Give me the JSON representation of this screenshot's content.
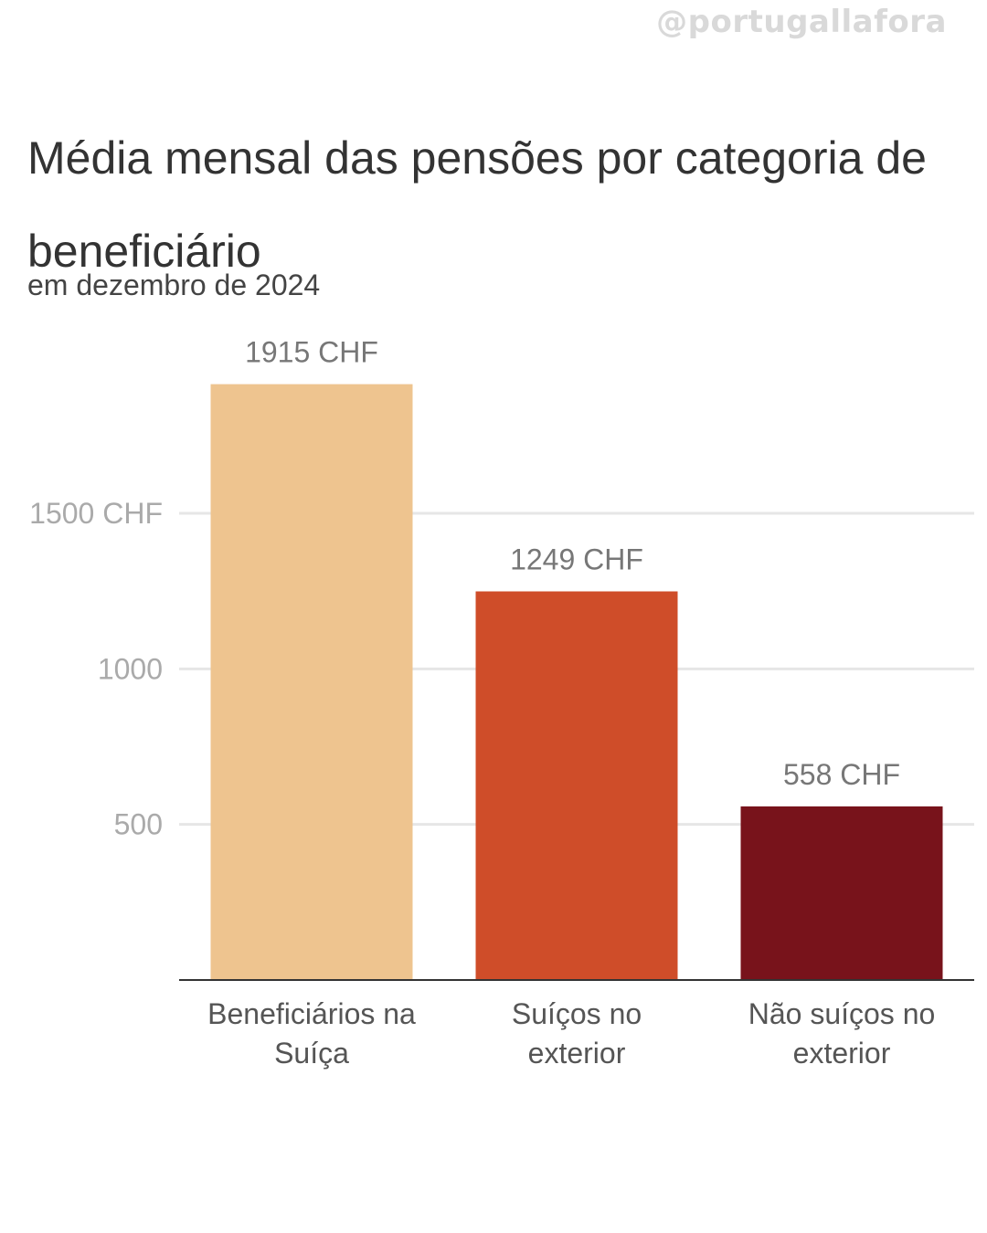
{
  "watermark": "@portugallafora",
  "chart_data": {
    "type": "bar",
    "title": "Média mensal das pensões por categoria de beneficiário",
    "subtitle": "em dezembro de 2024",
    "categories": [
      [
        "Beneficiários na",
        "Suíça"
      ],
      [
        "Suíços no",
        "exterior"
      ],
      [
        "Não suíços no",
        "exterior"
      ]
    ],
    "values": [
      1915,
      1249,
      558
    ],
    "value_labels": [
      "1915 CHF",
      "1249 CHF",
      "558 CHF"
    ],
    "colors": [
      "#EEC48F",
      "#CF4D29",
      "#78131B"
    ],
    "yticks": [
      {
        "value": 500,
        "label": "500"
      },
      {
        "value": 1000,
        "label": "1000"
      },
      {
        "value": 1500,
        "label": "1500 CHF"
      }
    ],
    "ylim": [
      0,
      2000
    ],
    "grid": true,
    "xlabel": "",
    "ylabel": ""
  }
}
